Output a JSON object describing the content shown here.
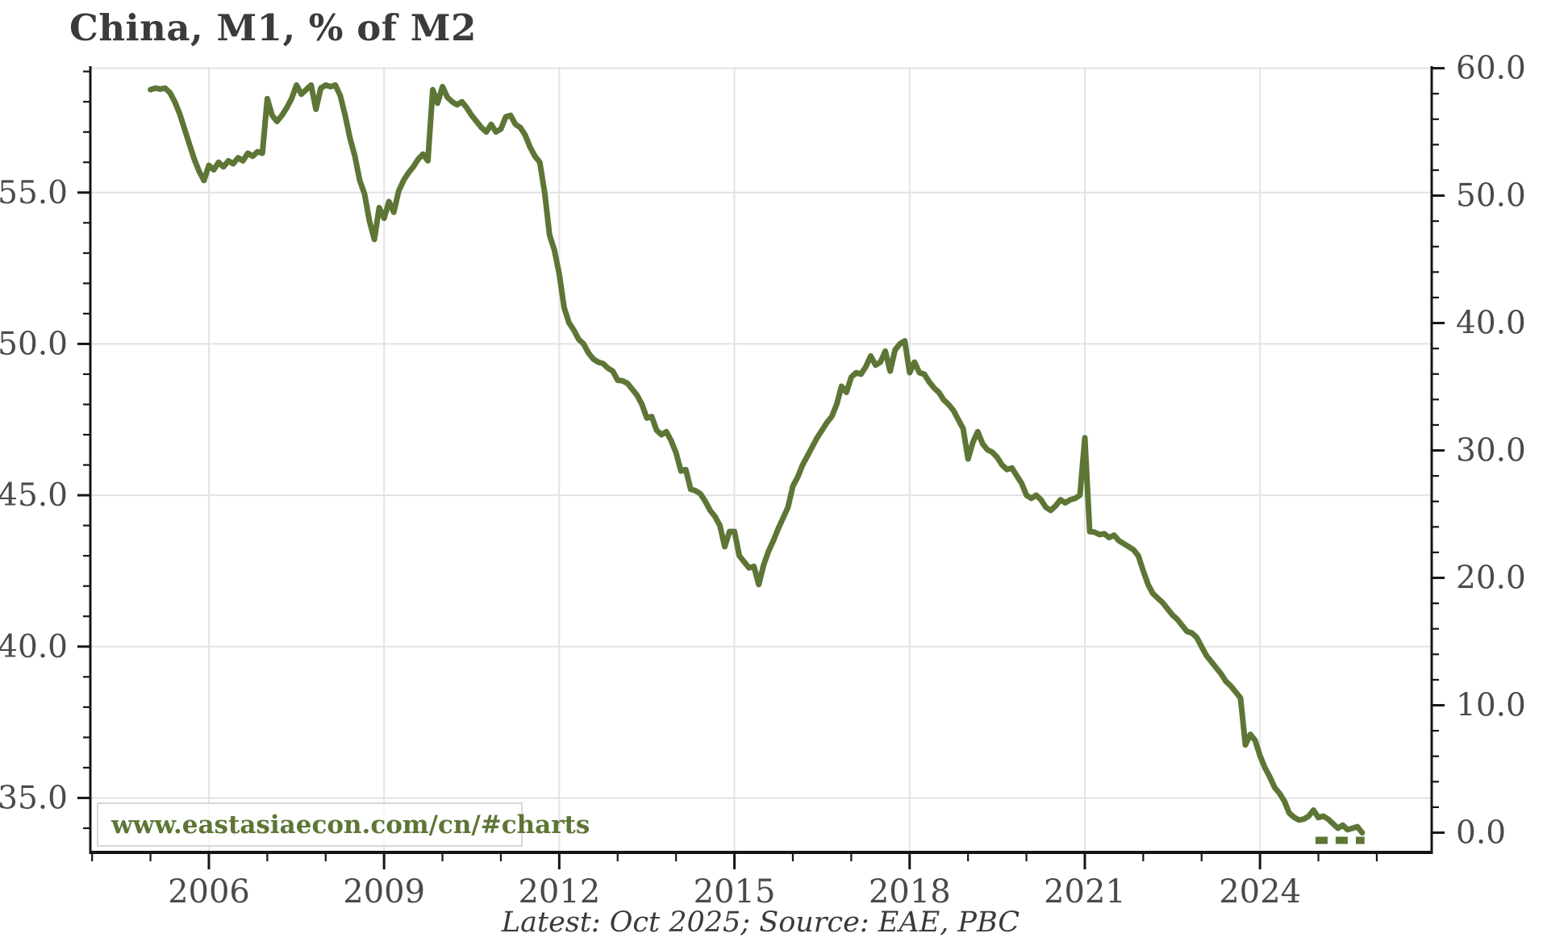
{
  "title": "China, M1, % of M2",
  "watermark": "www.eastasiaecon.com/cn/#charts",
  "caption": "Latest: Oct 2025; Source: EAE, PBC",
  "colors": {
    "line": "#5d7636",
    "title": "#3b3b3b",
    "tick_label": "#4a4a4a",
    "caption": "#3a3a3a",
    "watermark_text": "#5d7636",
    "watermark_border": "#d6d6d6",
    "gridline": "#e3e3e3",
    "spine": "#161616"
  },
  "chart_data": {
    "type": "line",
    "title": "China, M1, % of M2",
    "legend": "none",
    "grid": true,
    "x_axis": {
      "range": [
        2003.97,
        2026.94
      ],
      "major_tick_years": [
        2006,
        2009,
        2012,
        2015,
        2018,
        2021,
        2024
      ],
      "major_tick_labels": [
        "2006",
        "2009",
        "2012",
        "2015",
        "2018",
        "2021",
        "2024"
      ],
      "minor_tick_interval_years": 1
    },
    "left_axis": {
      "range": [
        33.2,
        59.15
      ],
      "tick_values": [
        55,
        50,
        45,
        40,
        35
      ],
      "tick_labels": [
        "55.0",
        "50.0",
        "45.0",
        "40.0",
        "35.0"
      ],
      "minor_interval": 1
    },
    "right_axis": {
      "range": [
        -1.55,
        60.1
      ],
      "tick_values": [
        60,
        50,
        40,
        30,
        20,
        10,
        0
      ],
      "tick_labels": [
        "60.0",
        "50.0",
        "40.0",
        "30.0",
        "20.0",
        "10.0",
        "0.0"
      ],
      "minor_interval": 2
    },
    "series": [
      {
        "name": "M1 as % of M2",
        "axis": "left",
        "frequency": "monthly",
        "start_year": 2005,
        "start_month": 1,
        "values": [
          58.4,
          58.45,
          58.42,
          58.45,
          58.3,
          58.0,
          57.6,
          57.1,
          56.6,
          56.1,
          55.7,
          55.4,
          55.9,
          55.75,
          56.0,
          55.85,
          56.05,
          55.95,
          56.15,
          56.05,
          56.3,
          56.2,
          56.35,
          56.3,
          58.1,
          57.55,
          57.35,
          57.55,
          57.8,
          58.1,
          58.55,
          58.25,
          58.4,
          58.55,
          57.75,
          58.45,
          58.55,
          58.5,
          58.55,
          58.2,
          57.55,
          56.8,
          56.2,
          55.4,
          54.95,
          54.05,
          53.45,
          54.5,
          54.15,
          54.7,
          54.35,
          55.05,
          55.4,
          55.65,
          55.85,
          56.1,
          56.27,
          56.05,
          58.4,
          57.95,
          58.5,
          58.15,
          58.0,
          57.9,
          58.0,
          57.8,
          57.55,
          57.35,
          57.15,
          57.0,
          57.25,
          57.0,
          57.1,
          57.5,
          57.55,
          57.25,
          57.15,
          56.9,
          56.5,
          56.2,
          56.0,
          55.0,
          53.6,
          53.1,
          52.3,
          51.2,
          50.7,
          50.45,
          50.15,
          50.0,
          49.7,
          49.5,
          49.4,
          49.35,
          49.2,
          49.1,
          48.8,
          48.78,
          48.7,
          48.5,
          48.3,
          48.0,
          47.55,
          47.6,
          47.15,
          47.0,
          47.1,
          46.8,
          46.4,
          45.8,
          45.85,
          45.2,
          45.15,
          45.05,
          44.8,
          44.5,
          44.3,
          44.0,
          43.3,
          43.8,
          43.8,
          43.0,
          42.8,
          42.6,
          42.65,
          42.05,
          42.7,
          43.15,
          43.5,
          43.9,
          44.25,
          44.6,
          45.3,
          45.6,
          46.0,
          46.3,
          46.6,
          46.9,
          47.15,
          47.4,
          47.6,
          48.0,
          48.6,
          48.4,
          48.9,
          49.05,
          49.0,
          49.25,
          49.6,
          49.3,
          49.4,
          49.76,
          49.1,
          49.8,
          50.0,
          50.1,
          49.05,
          49.4,
          49.05,
          49.0,
          48.75,
          48.55,
          48.4,
          48.15,
          48.0,
          47.8,
          47.5,
          47.2,
          46.2,
          46.75,
          47.1,
          46.7,
          46.5,
          46.42,
          46.25,
          46.0,
          45.85,
          45.9,
          45.65,
          45.4,
          45.0,
          44.9,
          45.0,
          44.85,
          44.6,
          44.5,
          44.65,
          44.85,
          44.75,
          44.85,
          44.9,
          45.0,
          46.9,
          43.8,
          43.78,
          43.7,
          43.73,
          43.6,
          43.68,
          43.5,
          43.4,
          43.3,
          43.2,
          43.0,
          42.5,
          42.05,
          41.75,
          41.6,
          41.45,
          41.25,
          41.05,
          40.9,
          40.7,
          40.5,
          40.45,
          40.3,
          40.0,
          39.7,
          39.5,
          39.3,
          39.1,
          38.85,
          38.7,
          38.5,
          38.3,
          36.75,
          37.1,
          36.9,
          36.4,
          36.0,
          35.7,
          35.35,
          35.15,
          34.9,
          34.5,
          34.36,
          34.27,
          34.3,
          34.4,
          34.6,
          34.35,
          34.4,
          34.3,
          34.15,
          34.0,
          34.1,
          33.95,
          34.0,
          34.05,
          33.85
        ]
      }
    ],
    "dashed_segment": {
      "axis": "left",
      "x_start": 2024.95,
      "x_end": 2025.79,
      "value": 33.6
    }
  }
}
